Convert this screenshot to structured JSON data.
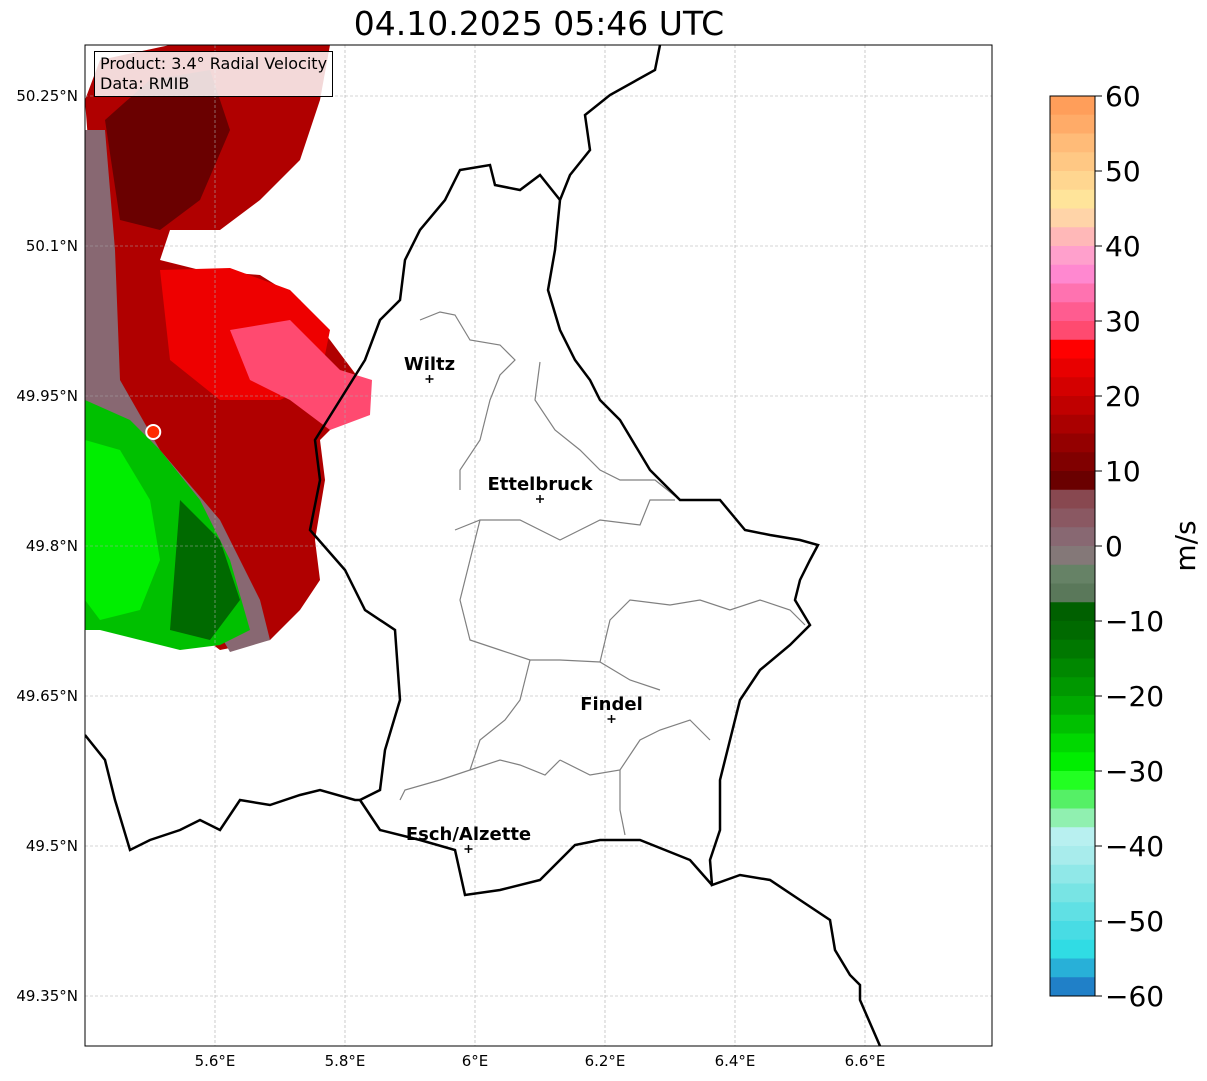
{
  "title": "04.10.2025 05:46 UTC",
  "info": {
    "product": "Product: 3.4° Radial Velocity",
    "data": "Data: RMIB"
  },
  "axes": {
    "lon_ticks": [
      {
        "value": 5.6,
        "label": "5.6°E"
      },
      {
        "value": 5.8,
        "label": "5.8°E"
      },
      {
        "value": 6.0,
        "label": "6°E"
      },
      {
        "value": 6.2,
        "label": "6.2°E"
      },
      {
        "value": 6.4,
        "label": "6.4°E"
      },
      {
        "value": 6.6,
        "label": "6.6°E"
      }
    ],
    "lat_ticks": [
      {
        "value": 50.25,
        "label": "50.25°N"
      },
      {
        "value": 50.1,
        "label": "50.1°N"
      },
      {
        "value": 49.95,
        "label": "49.95°N"
      },
      {
        "value": 49.8,
        "label": "49.8°N"
      },
      {
        "value": 49.65,
        "label": "49.65°N"
      },
      {
        "value": 49.5,
        "label": "49.5°N"
      },
      {
        "value": 49.35,
        "label": "49.35°N"
      }
    ]
  },
  "cities": [
    {
      "name": "Wiltz",
      "lon": 5.93,
      "lat": 49.967
    },
    {
      "name": "Ettelbruck",
      "lon": 6.1,
      "lat": 49.847
    },
    {
      "name": "Findel",
      "lon": 6.21,
      "lat": 49.627
    },
    {
      "name": "Esch/Alzette",
      "lon": 5.99,
      "lat": 49.497
    }
  ],
  "radar_site": {
    "lon": 5.505,
    "lat": 49.914
  },
  "colorbar": {
    "label": "m/s",
    "min": -60,
    "max": 60,
    "ticks": [
      {
        "value": 60,
        "label": "60"
      },
      {
        "value": 50,
        "label": "50"
      },
      {
        "value": 40,
        "label": "40"
      },
      {
        "value": 30,
        "label": "30"
      },
      {
        "value": 20,
        "label": "20"
      },
      {
        "value": 10,
        "label": "10"
      },
      {
        "value": 0,
        "label": "0"
      },
      {
        "value": -10,
        "label": "−10"
      },
      {
        "value": -20,
        "label": "−20"
      },
      {
        "value": -30,
        "label": "−30"
      },
      {
        "value": -40,
        "label": "−40"
      },
      {
        "value": -50,
        "label": "−50"
      },
      {
        "value": -60,
        "label": "−60"
      }
    ],
    "colors_top_to_bottom": [
      "#ff9e5a",
      "#ffab68",
      "#ffbb78",
      "#ffc884",
      "#ffd690",
      "#ffe49a",
      "#ffd4a8",
      "#ffb8b8",
      "#ffa0cc",
      "#ff88d0",
      "#ff72b0",
      "#ff5c90",
      "#ff4a70",
      "#ff0000",
      "#e80000",
      "#d40000",
      "#c00000",
      "#aa0000",
      "#940000",
      "#800000",
      "#6a0000",
      "#884850",
      "#8a5862",
      "#886872",
      "#847878",
      "#668266",
      "#5a785a",
      "#006000",
      "#006a00",
      "#007800",
      "#008800",
      "#009800",
      "#00aa00",
      "#00c000",
      "#00d800",
      "#00ee00",
      "#22ff22",
      "#55f066",
      "#90f0b0",
      "#b8f0f0",
      "#a8ecec",
      "#90e8e8",
      "#78e4e4",
      "#60e0e4",
      "#48dce4",
      "#30dce4",
      "#28b0d8",
      "#2080c8"
    ]
  }
}
